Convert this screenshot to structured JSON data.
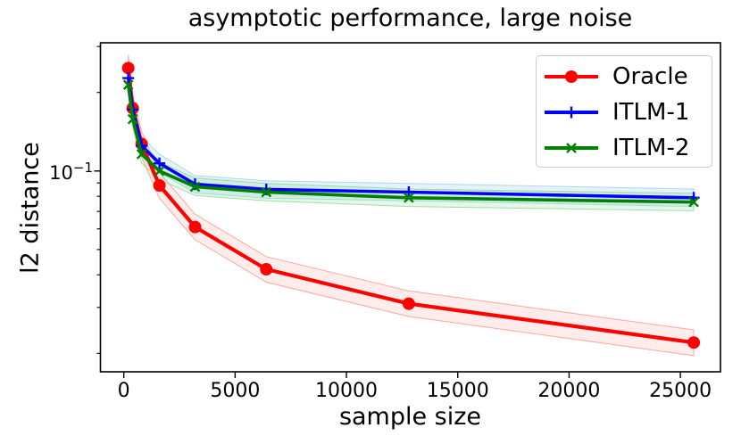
{
  "figure": {
    "title": "asymptotic performance, large noise",
    "xlabel": "sample size",
    "ylabel": "l2 distance"
  },
  "legend": {
    "position": "upper right",
    "items": [
      {
        "label": "Oracle",
        "color": "#ff0000",
        "marker": "circle"
      },
      {
        "label": "ITLM-1",
        "color": "#0000ff",
        "marker": "plus"
      },
      {
        "label": "ITLM-2",
        "color": "#008000",
        "marker": "x"
      }
    ]
  },
  "chart_data": {
    "type": "line",
    "title": "asymptotic performance, large noise",
    "xlabel": "sample size",
    "ylabel": "l2 distance",
    "x_scale": "linear",
    "y_scale": "log",
    "grid": false,
    "legend_position": "upper right",
    "x": [
      200,
      400,
      800,
      1600,
      3200,
      6400,
      12800,
      25600
    ],
    "series": [
      {
        "name": "Oracle",
        "color": "#ff0000",
        "marker": "circle",
        "line_width": 4.2,
        "values": [
          0.248,
          0.174,
          0.127,
          0.088,
          0.061,
          0.042,
          0.031,
          0.022
        ],
        "band_lower": [
          0.221,
          0.155,
          0.113,
          0.0786,
          0.0545,
          0.0375,
          0.0277,
          0.0196
        ],
        "band_upper": [
          0.278,
          0.195,
          0.142,
          0.0986,
          0.0683,
          0.047,
          0.0347,
          0.0246
        ],
        "band_fill": "rgba(255,70,60,0.10)",
        "band_edge": "rgba(250,140,130,0.75)"
      },
      {
        "name": "ITLM-1",
        "color": "#0000ff",
        "marker": "plus",
        "line_width": 3.6,
        "values": [
          0.227,
          0.172,
          0.125,
          0.107,
          0.089,
          0.085,
          0.083,
          0.079
        ],
        "band_lower": [
          0.21,
          0.159,
          0.116,
          0.099,
          0.0824,
          0.0787,
          0.0769,
          0.0731
        ],
        "band_upper": [
          0.245,
          0.186,
          0.135,
          0.116,
          0.0961,
          0.0918,
          0.0896,
          0.0853
        ],
        "band_fill": "rgba(160,210,235,0.28)",
        "band_edge": "rgba(150,205,235,0.75)"
      },
      {
        "name": "ITLM-2",
        "color": "#008000",
        "marker": "x",
        "line_width": 3.6,
        "values": [
          0.214,
          0.158,
          0.116,
          0.1,
          0.087,
          0.083,
          0.079,
          0.076
        ],
        "band_lower": [
          0.198,
          0.146,
          0.107,
          0.0926,
          0.0806,
          0.0769,
          0.0731,
          0.0704
        ],
        "band_upper": [
          0.231,
          0.171,
          0.125,
          0.108,
          0.094,
          0.0896,
          0.0853,
          0.0821
        ],
        "band_fill": "rgba(150,225,160,0.25)",
        "band_edge": "rgba(130,210,140,0.7)"
      }
    ],
    "x_ticks": [
      {
        "value": 0,
        "label": "0"
      },
      {
        "value": 5000,
        "label": "5000"
      },
      {
        "value": 10000,
        "label": "10000"
      },
      {
        "value": 15000,
        "label": "15000"
      },
      {
        "value": 20000,
        "label": "20000"
      },
      {
        "value": 25000,
        "label": "25000"
      }
    ],
    "y_tick": {
      "value": 0.1,
      "base": "10",
      "exp": "−1"
    },
    "y_minor_ticks": [
      0.3,
      0.2,
      0.09,
      0.08,
      0.07,
      0.06,
      0.05,
      0.04,
      0.03,
      0.02
    ],
    "xlim": [
      -1050,
      26800
    ],
    "ylim": [
      0.017,
      0.31
    ]
  }
}
